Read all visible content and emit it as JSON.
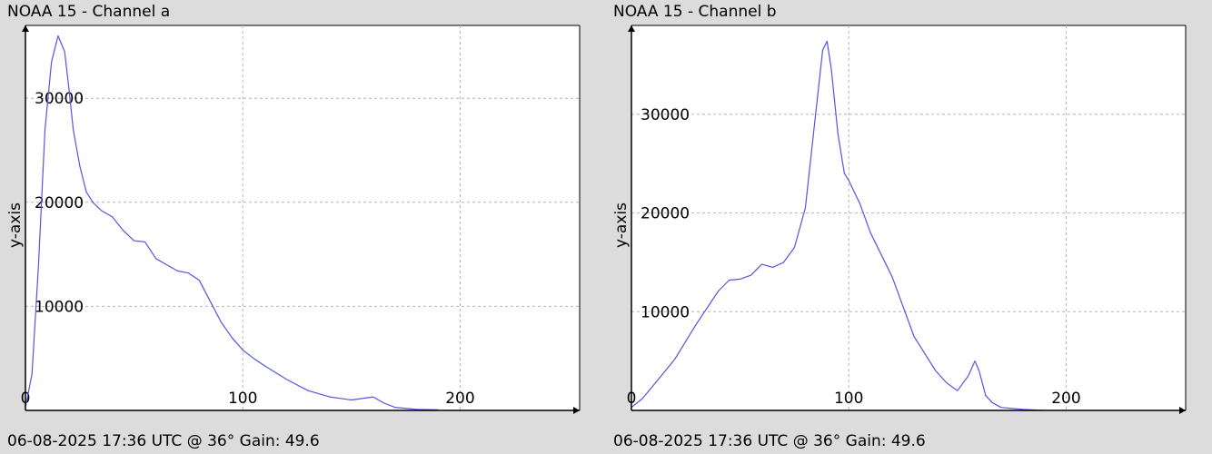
{
  "colors": {
    "background": "#dcdcdc",
    "plot_area": "#ffffff",
    "grid": "#b4b4b4",
    "series": "#5555dd",
    "axis": "#000000"
  },
  "charts": [
    {
      "id": "a",
      "title": "NOAA 15 - Channel a",
      "footer": "06-08-2025 17:36 UTC @ 36° Gain: 49.6"
    },
    {
      "id": "b",
      "title": "NOAA 15 - Channel b",
      "footer": "06-08-2025 17:36 UTC @ 36° Gain: 49.6"
    }
  ],
  "chart_data": [
    {
      "type": "line",
      "title": "NOAA 15 - Channel a",
      "xlabel": "",
      "ylabel": "y-axis",
      "xlim": [
        0,
        255
      ],
      "ylim": [
        0,
        37000
      ],
      "x_ticks": [
        0,
        100,
        200
      ],
      "y_ticks": [
        10000,
        20000,
        30000
      ],
      "grid": true,
      "x": [
        0,
        3,
        6,
        9,
        12,
        15,
        18,
        20,
        22,
        25,
        28,
        31,
        35,
        40,
        45,
        50,
        55,
        60,
        65,
        70,
        75,
        80,
        85,
        90,
        95,
        100,
        105,
        110,
        120,
        130,
        140,
        150,
        160,
        165,
        170,
        180,
        190
      ],
      "values": [
        300,
        3500,
        14000,
        27000,
        33500,
        36000,
        34500,
        31000,
        27000,
        23500,
        21000,
        20000,
        19200,
        18600,
        17300,
        16300,
        16200,
        14600,
        14000,
        13400,
        13200,
        12500,
        10500,
        8500,
        7000,
        5800,
        5000,
        4300,
        3000,
        1900,
        1300,
        1000,
        1300,
        700,
        300,
        100,
        50
      ]
    },
    {
      "type": "line",
      "title": "NOAA 15 - Channel b",
      "xlabel": "",
      "ylabel": "y-axis",
      "xlim": [
        0,
        255
      ],
      "ylim": [
        0,
        39000
      ],
      "x_ticks": [
        0,
        100,
        200
      ],
      "y_ticks": [
        10000,
        20000,
        30000
      ],
      "grid": true,
      "x": [
        0,
        5,
        10,
        20,
        30,
        40,
        45,
        50,
        55,
        60,
        65,
        70,
        75,
        80,
        85,
        88,
        90,
        92,
        95,
        98,
        100,
        105,
        110,
        120,
        130,
        140,
        145,
        150,
        155,
        158,
        160,
        163,
        166,
        170,
        180,
        190
      ],
      "values": [
        300,
        1200,
        2500,
        5200,
        8800,
        12100,
        13200,
        13300,
        13700,
        14800,
        14500,
        15000,
        16500,
        20500,
        30500,
        36500,
        37400,
        34500,
        28000,
        24000,
        23300,
        21000,
        18000,
        13500,
        7500,
        4000,
        2800,
        2000,
        3500,
        5000,
        4000,
        1500,
        800,
        300,
        100,
        0
      ]
    }
  ]
}
